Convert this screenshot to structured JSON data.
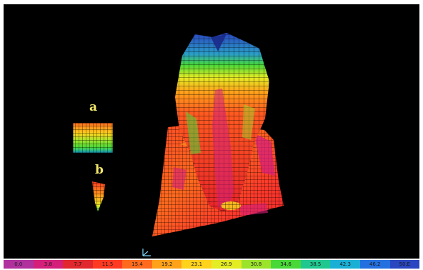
{
  "labels": {
    "a": "a",
    "b": "b"
  },
  "legend": {
    "ticks": [
      "0.0",
      "3.8",
      "7.7",
      "11.5",
      "15.4",
      "19.2",
      "23.1",
      "26.9",
      "30.8",
      "34.6",
      "38.5",
      "42.3",
      "46.2",
      "50.E"
    ],
    "colors": [
      "#b0309e",
      "#d4207a",
      "#e0282e",
      "#ff3a22",
      "#ff6a1e",
      "#ffa21a",
      "#ffd21c",
      "#e4ec24",
      "#9ce42c",
      "#48d838",
      "#20c890",
      "#1ab0d6",
      "#2470e0",
      "#2a46c0"
    ]
  },
  "colors": {
    "background": "#000000",
    "label": "#f2e66a",
    "stress_low": "#e8232a",
    "stress_mid": "#ffd21c",
    "stress_high": "#2a46c0"
  }
}
